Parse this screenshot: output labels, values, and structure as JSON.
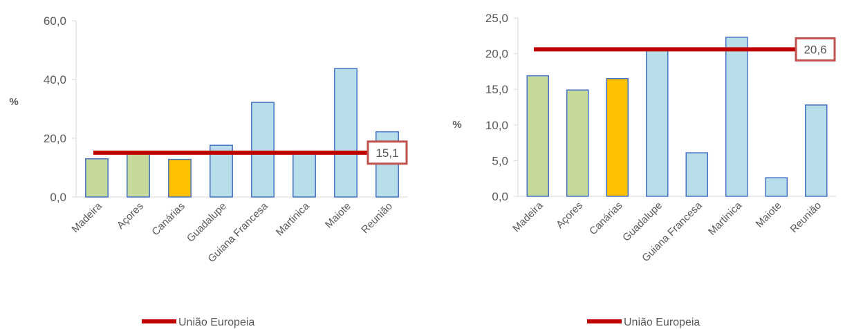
{
  "chart_data": [
    {
      "type": "bar",
      "ylabel": "%",
      "ylim": [
        0,
        60
      ],
      "yticks": [
        "0,0",
        "20,0",
        "40,0",
        "60,0"
      ],
      "grid": false,
      "categories": [
        "Madeira",
        "Açores",
        "Canárias",
        "Guadalupe",
        "Guiana Francesa",
        "Martinica",
        "Maiote",
        "Reunião"
      ],
      "values": [
        13.0,
        14.8,
        12.8,
        17.6,
        32.2,
        15.1,
        43.7,
        22.2
      ],
      "bar_colors": [
        "#c5d99b",
        "#c5d99b",
        "#ffc000",
        "#b7dde8",
        "#b7dde8",
        "#b7dde8",
        "#b7dde8",
        "#b7dde8"
      ],
      "reference_line": {
        "name": "União Europeia",
        "value": 15.1,
        "label": "15,1",
        "color": "#c00000"
      },
      "legend": {
        "position": "bottom",
        "entries": [
          "União Europeia"
        ]
      }
    },
    {
      "type": "bar",
      "ylabel": "%",
      "ylim": [
        0,
        25
      ],
      "yticks": [
        "0,0",
        "5,0",
        "10,0",
        "15,0",
        "20,0",
        "25,0"
      ],
      "grid": false,
      "categories": [
        "Madeira",
        "Açores",
        "Canárias",
        "Guadalupe",
        "Guiana Francesa",
        "Martinica",
        "Maiote",
        "Reunião"
      ],
      "values": [
        16.9,
        14.9,
        16.5,
        20.6,
        6.1,
        22.3,
        2.6,
        12.8
      ],
      "bar_colors": [
        "#c5d99b",
        "#c5d99b",
        "#ffc000",
        "#b7dde8",
        "#b7dde8",
        "#b7dde8",
        "#b7dde8",
        "#b7dde8"
      ],
      "reference_line": {
        "name": "União Europeia",
        "value": 20.6,
        "label": "20,6",
        "color": "#c00000"
      },
      "legend": {
        "position": "bottom",
        "entries": [
          "União Europeia"
        ]
      }
    }
  ],
  "colors": {
    "bar_border": "#4472c4",
    "axis": "#d9d9d9",
    "tick_text": "#595959",
    "label_box_border": "#c0504d"
  }
}
